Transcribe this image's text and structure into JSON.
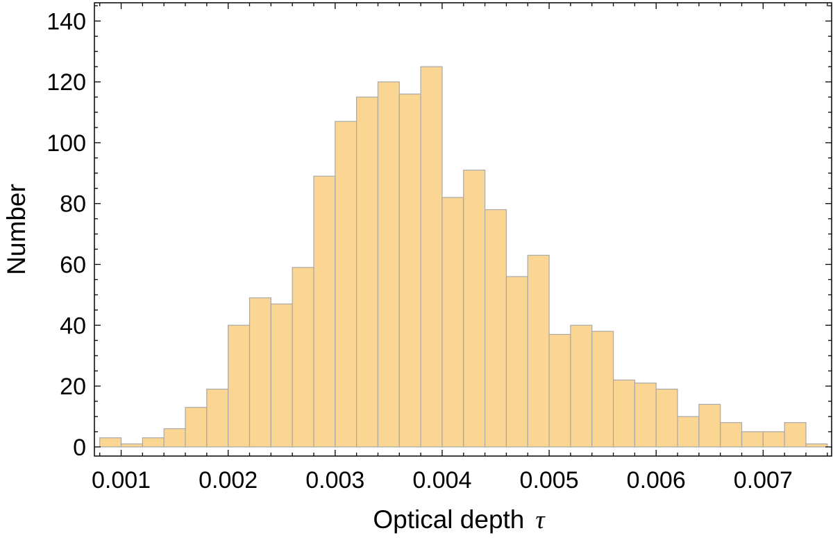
{
  "chart_data": {
    "type": "bar",
    "subtype": "histogram",
    "title": "",
    "xlabel": "Optical depth",
    "xlabel_symbol": "τ",
    "ylabel": "Number",
    "bin_width": 0.0002,
    "bin_start": 0.0008,
    "xlim": [
      0.00075,
      0.00764
    ],
    "ylim": [
      -3,
      146
    ],
    "x_ticks": [
      0.001,
      0.002,
      0.003,
      0.004,
      0.005,
      0.006,
      0.007
    ],
    "x_tick_labels": [
      "0.001",
      "0.002",
      "0.003",
      "0.004",
      "0.005",
      "0.006",
      "0.007"
    ],
    "y_ticks": [
      0,
      20,
      40,
      60,
      80,
      100,
      120,
      140
    ],
    "y_tick_labels": [
      "0",
      "20",
      "40",
      "60",
      "80",
      "100",
      "120",
      "140"
    ],
    "values": [
      3,
      1,
      3,
      6,
      13,
      19,
      40,
      49,
      47,
      59,
      89,
      107,
      115,
      120,
      116,
      125,
      82,
      91,
      78,
      56,
      63,
      37,
      40,
      38,
      22,
      21,
      19,
      10,
      14,
      8,
      5,
      5,
      8,
      1
    ],
    "bar_color": "#fbd592",
    "bar_edge_color": "#a8a8a8",
    "grid": false,
    "legend": "none"
  }
}
